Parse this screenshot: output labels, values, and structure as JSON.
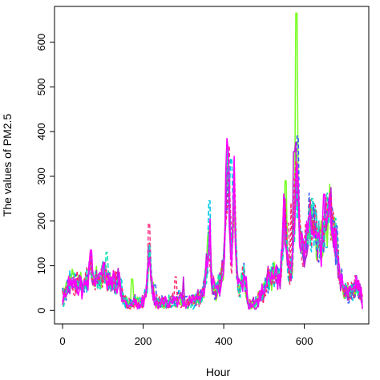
{
  "chart_data": {
    "type": "line",
    "xlabel": "Hour",
    "ylabel": "The values of PM2.5",
    "xlim": [
      -20,
      760
    ],
    "ylim": [
      -30,
      680
    ],
    "x_ticks": [
      0,
      200,
      400,
      600
    ],
    "y_ticks": [
      0,
      100,
      200,
      300,
      400,
      500,
      600
    ],
    "grid": false,
    "legend": "none",
    "x_start": 0,
    "x_end": 745,
    "base_profile": [
      [
        0,
        30
      ],
      [
        10,
        45
      ],
      [
        20,
        70
      ],
      [
        30,
        55
      ],
      [
        40,
        65
      ],
      [
        50,
        50
      ],
      [
        60,
        75
      ],
      [
        70,
        95
      ],
      [
        80,
        70
      ],
      [
        90,
        60
      ],
      [
        100,
        85
      ],
      [
        110,
        70
      ],
      [
        120,
        60
      ],
      [
        130,
        65
      ],
      [
        140,
        70
      ],
      [
        150,
        30
      ],
      [
        160,
        15
      ],
      [
        170,
        12
      ],
      [
        180,
        20
      ],
      [
        190,
        15
      ],
      [
        200,
        20
      ],
      [
        210,
        60
      ],
      [
        215,
        150
      ],
      [
        220,
        60
      ],
      [
        230,
        20
      ],
      [
        240,
        15
      ],
      [
        250,
        20
      ],
      [
        260,
        15
      ],
      [
        270,
        20
      ],
      [
        280,
        25
      ],
      [
        290,
        30
      ],
      [
        300,
        20
      ],
      [
        310,
        15
      ],
      [
        320,
        20
      ],
      [
        330,
        25
      ],
      [
        340,
        30
      ],
      [
        350,
        40
      ],
      [
        360,
        120
      ],
      [
        365,
        170
      ],
      [
        370,
        60
      ],
      [
        380,
        40
      ],
      [
        390,
        60
      ],
      [
        400,
        100
      ],
      [
        405,
        250
      ],
      [
        410,
        320
      ],
      [
        415,
        200
      ],
      [
        420,
        120
      ],
      [
        425,
        290
      ],
      [
        430,
        150
      ],
      [
        435,
        60
      ],
      [
        440,
        40
      ],
      [
        445,
        70
      ],
      [
        450,
        80
      ],
      [
        455,
        60
      ],
      [
        460,
        20
      ],
      [
        470,
        10
      ],
      [
        480,
        15
      ],
      [
        490,
        30
      ],
      [
        500,
        40
      ],
      [
        510,
        70
      ],
      [
        520,
        80
      ],
      [
        530,
        75
      ],
      [
        540,
        70
      ],
      [
        545,
        120
      ],
      [
        550,
        240
      ],
      [
        555,
        150
      ],
      [
        560,
        80
      ],
      [
        570,
        100
      ],
      [
        575,
        200
      ],
      [
        580,
        310
      ],
      [
        585,
        220
      ],
      [
        590,
        150
      ],
      [
        600,
        120
      ],
      [
        610,
        190
      ],
      [
        620,
        200
      ],
      [
        630,
        170
      ],
      [
        640,
        150
      ],
      [
        650,
        180
      ],
      [
        660,
        200
      ],
      [
        665,
        230
      ],
      [
        670,
        190
      ],
      [
        680,
        150
      ],
      [
        690,
        70
      ],
      [
        700,
        50
      ],
      [
        710,
        40
      ],
      [
        720,
        45
      ],
      [
        730,
        60
      ],
      [
        740,
        35
      ],
      [
        745,
        15
      ]
    ],
    "spikes": [
      [
        412,
        368
      ],
      [
        418,
        340
      ],
      [
        580,
        665
      ],
      [
        583,
        390
      ],
      [
        575,
        355
      ],
      [
        567,
        240
      ],
      [
        620,
        250
      ],
      [
        650,
        260
      ],
      [
        215,
        195
      ],
      [
        365,
        245
      ],
      [
        553,
        290
      ],
      [
        668,
        235
      ],
      [
        300,
        75
      ],
      [
        280,
        75
      ],
      [
        110,
        130
      ],
      [
        70,
        135
      ],
      [
        560,
        195
      ],
      [
        636,
        200
      ],
      [
        172,
        70
      ],
      [
        230,
        60
      ]
    ],
    "series": [
      {
        "color": "#ff3b8d",
        "dash": "5,3",
        "seed": 11
      },
      {
        "color": "#00c8e8",
        "dash": "6,3",
        "seed": 23
      },
      {
        "color": "#7cff2a",
        "dash": "",
        "seed": 37
      },
      {
        "color": "#3a5bff",
        "dash": "5,3",
        "seed": 41
      },
      {
        "color": "#c11bd6",
        "dash": "",
        "seed": 53
      },
      {
        "color": "#ff2a6b",
        "dash": "4,3",
        "seed": 67
      },
      {
        "color": "#12e0b4",
        "dash": "6,3",
        "seed": 71
      },
      {
        "color": "#ff00ff",
        "dash": "",
        "seed": 83
      }
    ]
  }
}
